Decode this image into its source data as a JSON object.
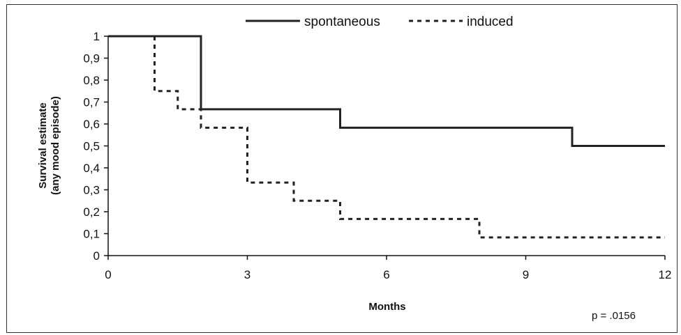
{
  "chart_data": {
    "type": "line",
    "xlabel": "Months",
    "ylabel_lines": [
      "Survival estimate",
      "(any mood episode)"
    ],
    "xlim": [
      0,
      12
    ],
    "ylim": [
      0,
      1
    ],
    "xticks": [
      0,
      3,
      6,
      9,
      12
    ],
    "xtick_labels": [
      "0",
      "3",
      "6",
      "9",
      "12"
    ],
    "yticks": [
      0,
      0.1,
      0.2,
      0.3,
      0.4,
      0.5,
      0.6,
      0.7,
      0.8,
      0.9,
      1
    ],
    "ytick_labels": [
      "0",
      "0,1",
      "0,2",
      "0,3",
      "0,4",
      "0,5",
      "0,6",
      "0,7",
      "0,8",
      "0,9",
      "1"
    ],
    "grid": false,
    "legend_position": "top",
    "series": [
      {
        "name": "spontaneous",
        "style": "solid",
        "color": "#222222",
        "steps": [
          {
            "x": 0,
            "y": 1
          },
          {
            "x": 2,
            "y": 0.667
          },
          {
            "x": 5,
            "y": 0.583
          },
          {
            "x": 10,
            "y": 0.5
          },
          {
            "x": 12,
            "y": 0.5
          }
        ]
      },
      {
        "name": "induced",
        "style": "dashed",
        "color": "#222222",
        "steps": [
          {
            "x": 1,
            "y": 1
          },
          {
            "x": 1,
            "y": 0.75
          },
          {
            "x": 1.5,
            "y": 0.667
          },
          {
            "x": 2,
            "y": 0.583
          },
          {
            "x": 3,
            "y": 0.333
          },
          {
            "x": 4,
            "y": 0.25
          },
          {
            "x": 5,
            "y": 0.167
          },
          {
            "x": 8,
            "y": 0.083
          },
          {
            "x": 12,
            "y": 0.083
          }
        ]
      }
    ],
    "annotation": "p = .0156"
  }
}
